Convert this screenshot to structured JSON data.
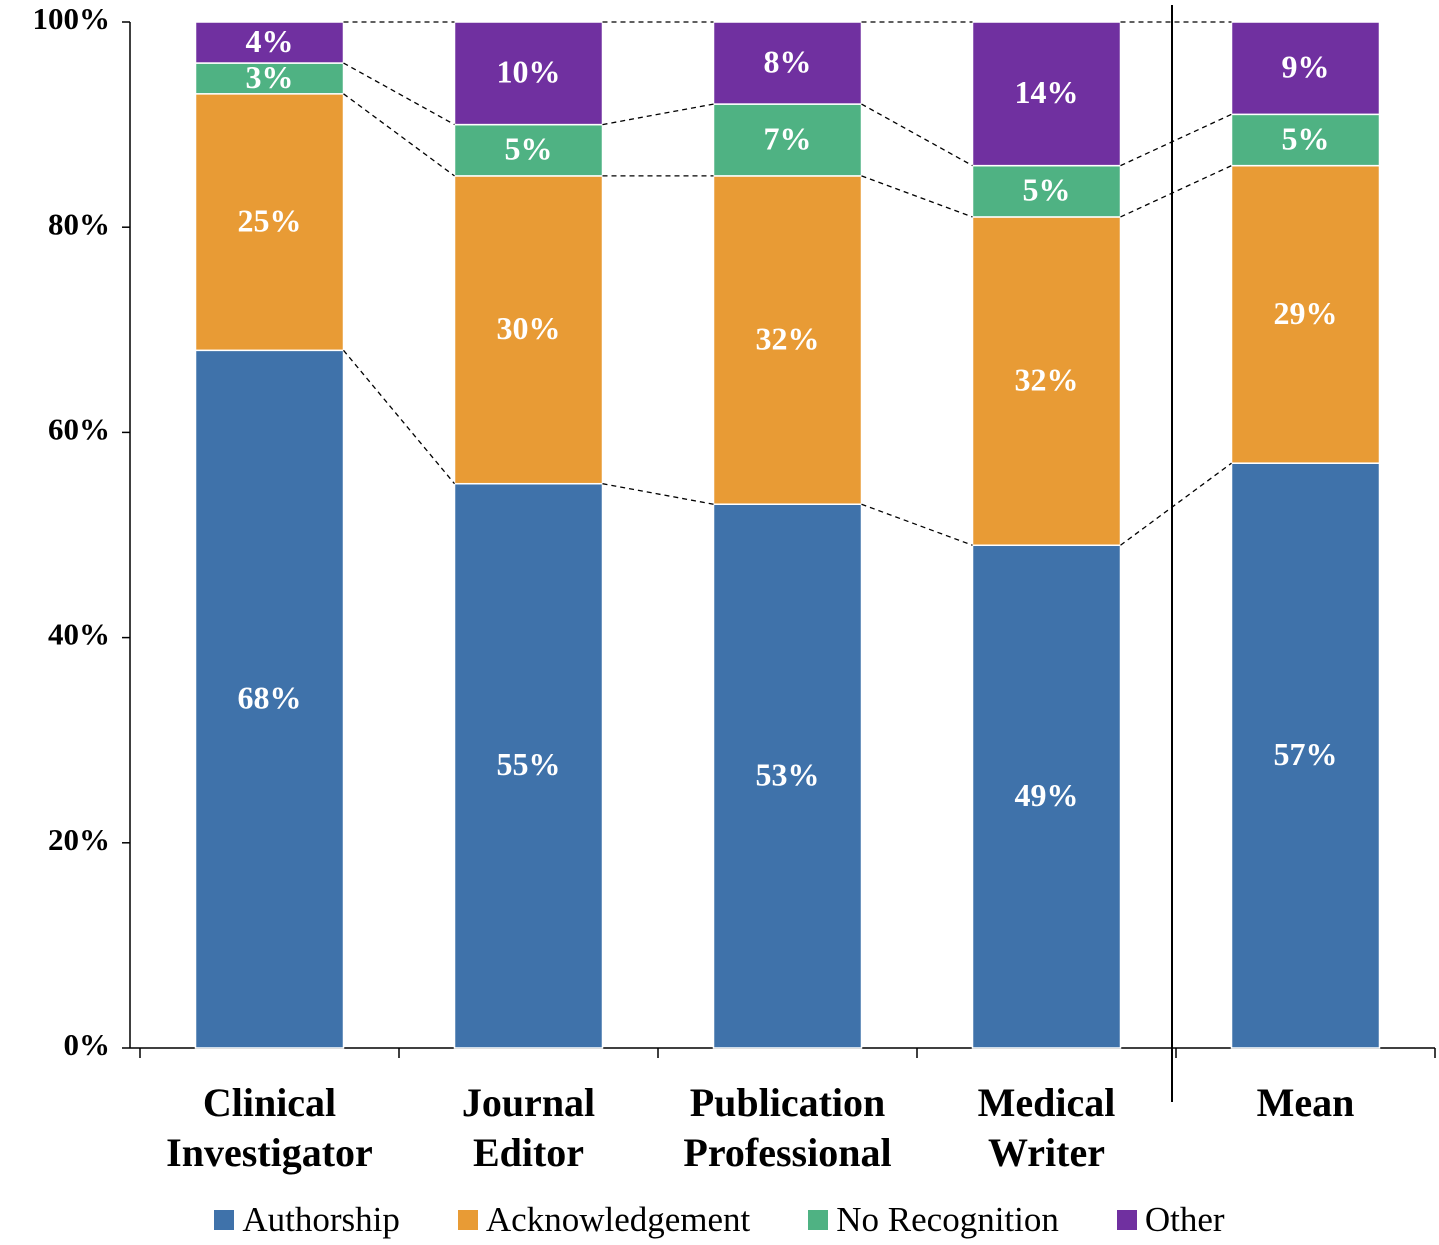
{
  "chart_data": {
    "type": "stacked_bar",
    "categories": [
      "Clinical Investigator",
      "Journal Editor",
      "Publication Professional",
      "Medical Writer",
      "Mean"
    ],
    "series": [
      {
        "name": "Authorship",
        "color": "#3f72aa",
        "values": [
          68,
          55,
          53,
          49,
          57
        ],
        "value_labels": [
          "68%",
          "55%",
          "53%",
          "49%",
          "57%"
        ]
      },
      {
        "name": "Acknowledgement",
        "color": "#e89b35",
        "values": [
          25,
          30,
          32,
          32,
          29
        ],
        "value_labels": [
          "25%",
          "30%",
          "32%",
          "32%",
          "29%"
        ]
      },
      {
        "name": "No Recognition",
        "color": "#4fb283",
        "values": [
          3,
          5,
          7,
          5,
          5
        ],
        "value_labels": [
          "3%",
          "5%",
          "7%",
          "5%",
          "5%"
        ]
      },
      {
        "name": "Other",
        "color": "#7030a0",
        "values": [
          4,
          10,
          8,
          14,
          9
        ],
        "value_labels": [
          "4%",
          "10%",
          "8%",
          "14%",
          "9%"
        ]
      }
    ],
    "ylim": [
      0,
      100
    ],
    "yticks": [
      {
        "value": 0,
        "label": "0%"
      },
      {
        "value": 20,
        "label": "20%"
      },
      {
        "value": 40,
        "label": "40%"
      },
      {
        "value": 60,
        "label": "60%"
      },
      {
        "value": 80,
        "label": "80%"
      },
      {
        "value": 100,
        "label": "100%"
      }
    ],
    "legend": "bottom"
  }
}
